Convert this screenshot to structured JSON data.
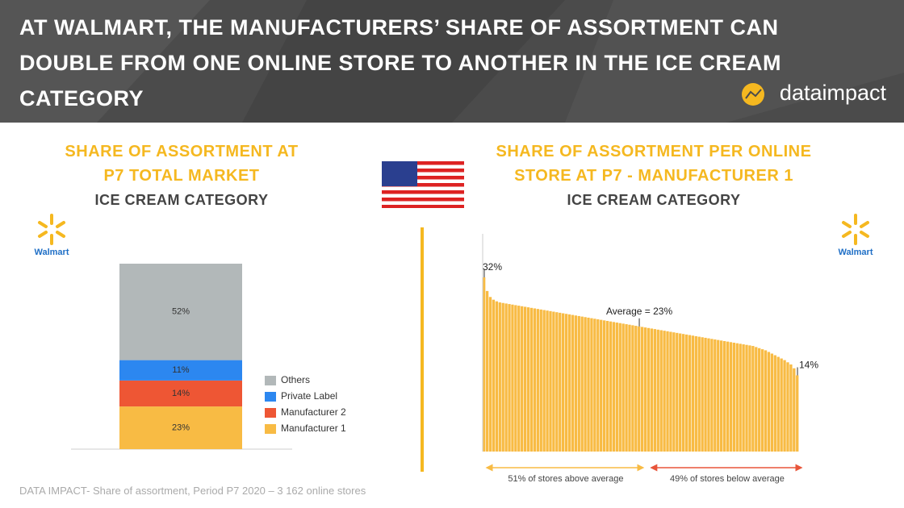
{
  "header": {
    "title": "AT WALMART, THE MANUFACTURERS’ SHARE OF ASSORTMENT CAN DOUBLE FROM ONE ONLINE STORE TO ANOTHER IN THE ICE CREAM CATEGORY",
    "brand": "dataimpact"
  },
  "chart_data": [
    {
      "type": "stacked_bar",
      "title": "SHARE OF ASSORTMENT AT P7 TOTAL MARKET",
      "subtitle": "ICE CREAM CATEGORY",
      "retailer": "Walmart",
      "ylim": [
        0,
        100
      ],
      "series": [
        {
          "name": "Manufacturer 1",
          "color": "#f8bb44",
          "values": [
            23
          ],
          "value_labels": [
            "23%"
          ]
        },
        {
          "name": "Manufacturer 2",
          "color": "#ee5634",
          "values": [
            14
          ],
          "value_labels": [
            "14%"
          ]
        },
        {
          "name": "Private Label",
          "color": "#2c87f0",
          "values": [
            11
          ],
          "value_labels": [
            "11%"
          ]
        },
        {
          "name": "Others",
          "color": "#b2b8b9",
          "values": [
            52
          ],
          "value_labels": [
            "52%"
          ]
        }
      ]
    },
    {
      "type": "bar",
      "title": "SHARE OF ASSORTMENT PER ONLINE STORE AT P7 - MANUFACTURER 1",
      "subtitle": "ICE CREAM CATEGORY",
      "retailer": "Walmart",
      "color": "#f8bb44",
      "ylim": [
        0,
        40
      ],
      "values": [
        32,
        29.5,
        28.4,
        27.9,
        27.6,
        27.4,
        27.3,
        27.2,
        27.1,
        27.0,
        26.9,
        26.8,
        26.7,
        26.6,
        26.5,
        26.4,
        26.3,
        26.2,
        26.1,
        26.0,
        25.9,
        25.8,
        25.7,
        25.6,
        25.5,
        25.4,
        25.3,
        25.2,
        25.1,
        25.0,
        24.9,
        24.8,
        24.7,
        24.6,
        24.5,
        24.4,
        24.3,
        24.2,
        24.1,
        24.0,
        23.9,
        23.8,
        23.7,
        23.6,
        23.5,
        23.4,
        23.3,
        23.2,
        23.1,
        23.0,
        22.9,
        22.8,
        22.7,
        22.6,
        22.5,
        22.4,
        22.3,
        22.2,
        22.1,
        22.0,
        21.9,
        21.8,
        21.7,
        21.6,
        21.5,
        21.4,
        21.3,
        21.2,
        21.1,
        21.0,
        20.9,
        20.8,
        20.7,
        20.6,
        20.5,
        20.4,
        20.3,
        20.2,
        20.1,
        20.0,
        19.9,
        19.8,
        19.7,
        19.6,
        19.5,
        19.4,
        19.2,
        19.0,
        18.8,
        18.6,
        18.3,
        18.0,
        17.7,
        17.4,
        17.1,
        16.8,
        16.4,
        16.0,
        15.3,
        14
      ],
      "annotations": [
        {
          "label": "32%",
          "value": 32
        },
        {
          "label": "Average = 23%",
          "value": 23
        },
        {
          "label": "14%",
          "value": 14
        }
      ],
      "spans": [
        {
          "label": "51% of stores above average",
          "value": 51,
          "color": "#f8bb44"
        },
        {
          "label": "49% of stores below average",
          "value": 49,
          "color": "#e8553a"
        }
      ]
    }
  ],
  "footer": {
    "source": "DATA IMPACT- Share of assortment, Period P7 2020 – 3 162 online stores"
  }
}
